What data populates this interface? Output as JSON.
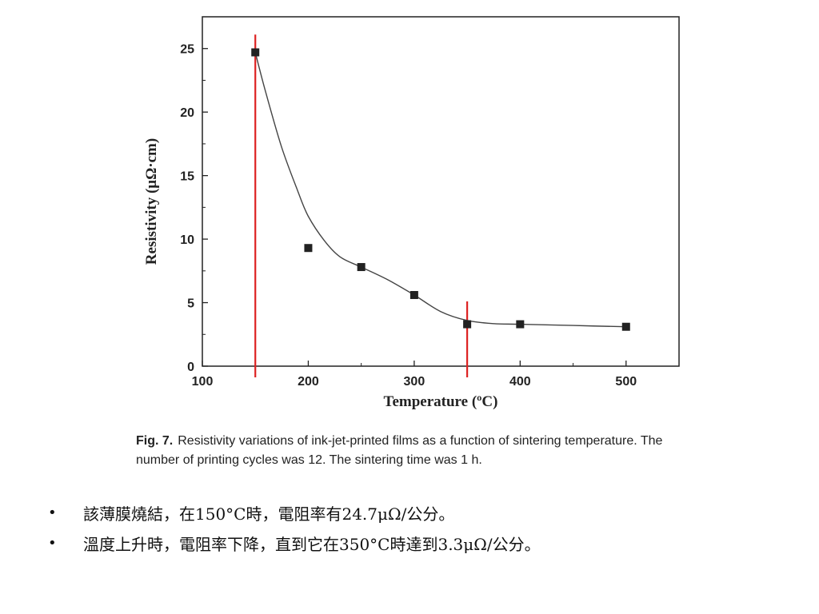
{
  "chart_data": {
    "type": "line",
    "xlabel": "Temperature (ºC)",
    "ylabel": "Resistivity (μΩ·cm)",
    "xlim": [
      100,
      550
    ],
    "ylim": [
      0,
      27.5
    ],
    "x_ticks": [
      "100",
      "200",
      "300",
      "400",
      "500"
    ],
    "y_ticks": [
      "0",
      "5",
      "10",
      "15",
      "20",
      "25"
    ],
    "grid": false,
    "series": [
      {
        "x": [
          150,
          200,
          250,
          300,
          350,
          400,
          500
        ],
        "y": [
          24.7,
          9.3,
          7.8,
          5.6,
          3.3,
          3.3,
          3.1
        ],
        "marker": "square",
        "color": "#222222"
      }
    ],
    "fit_curve": {
      "x": [
        150,
        160,
        175,
        190,
        200,
        215,
        230,
        250,
        275,
        300,
        325,
        350,
        375,
        400,
        450,
        500
      ],
      "y": [
        24.7,
        21.5,
        17.2,
        13.8,
        11.8,
        9.9,
        8.6,
        7.8,
        6.8,
        5.6,
        4.3,
        3.6,
        3.35,
        3.3,
        3.2,
        3.1
      ],
      "color": "#444444"
    },
    "vertical_lines": [
      {
        "x": 150,
        "y_top": 26.1,
        "color": "#dd2222"
      },
      {
        "x": 350,
        "y_top": 5.1,
        "color": "#dd2222"
      }
    ]
  },
  "caption": {
    "fig_label": "Fig. 7.",
    "text": "Resistivity variations of ink-jet-printed films as a function of sintering temperature. The number of printing cycles was 12. The sintering time was 1 h."
  },
  "bullets": [
    {
      "symbol": "•",
      "text": "該薄膜燒結，在150°C時，電阻率有24.7μΩ/公分。"
    },
    {
      "symbol": "•",
      "text": "溫度上升時，電阻率下降，直到它在350°C時達到3.3μΩ/公分。"
    }
  ]
}
